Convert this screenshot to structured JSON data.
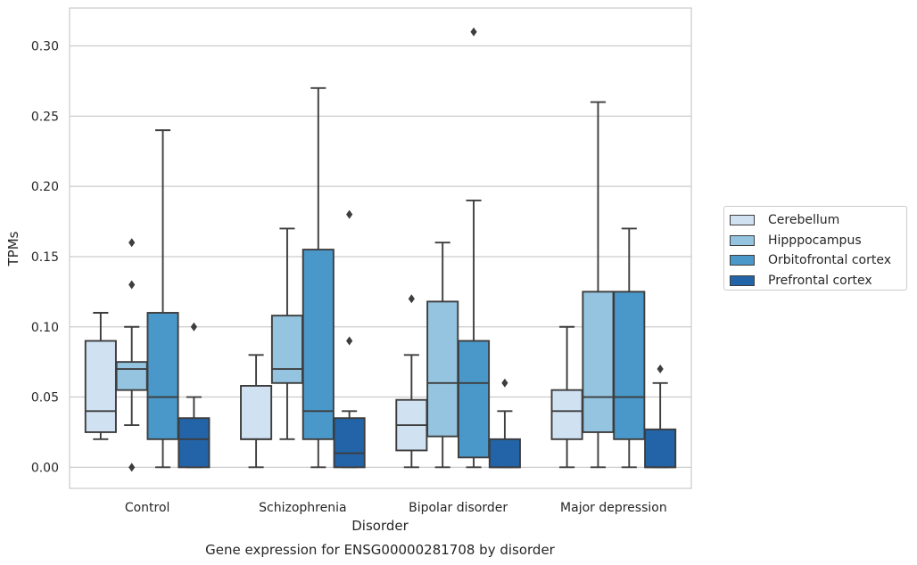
{
  "chart_data": {
    "type": "box",
    "title": "",
    "caption": "Gene expression for ENSG00000281708 by disorder",
    "xlabel": "Disorder",
    "ylabel": "TPMs",
    "ylim": [
      -0.015,
      0.327
    ],
    "yticks": [
      "0.00",
      "0.05",
      "0.10",
      "0.15",
      "0.20",
      "0.25",
      "0.30"
    ],
    "grid": "horizontal",
    "legend_position": "right",
    "categories": [
      "Control",
      "Schizophrenia",
      "Bipolar disorder",
      "Major depression"
    ],
    "series": [
      {
        "name": "Cerebellum",
        "color": "#d0e1f2",
        "boxes": [
          {
            "whislo": 0.02,
            "q1": 0.025,
            "med": 0.04,
            "q3": 0.09,
            "whishi": 0.11,
            "fliers": []
          },
          {
            "whislo": 0.0,
            "q1": 0.02,
            "med": 0.02,
            "q3": 0.058,
            "whishi": 0.08,
            "fliers": []
          },
          {
            "whislo": 0.0,
            "q1": 0.012,
            "med": 0.03,
            "q3": 0.048,
            "whishi": 0.08,
            "fliers": [
              0.12
            ]
          },
          {
            "whislo": 0.0,
            "q1": 0.02,
            "med": 0.04,
            "q3": 0.055,
            "whishi": 0.1,
            "fliers": []
          }
        ]
      },
      {
        "name": "Hipppocampus",
        "color": "#94c4df",
        "boxes": [
          {
            "whislo": 0.03,
            "q1": 0.055,
            "med": 0.07,
            "q3": 0.075,
            "whishi": 0.1,
            "fliers": [
              0.13,
              0.16,
              0.0
            ]
          },
          {
            "whislo": 0.02,
            "q1": 0.06,
            "med": 0.07,
            "q3": 0.108,
            "whishi": 0.17,
            "fliers": []
          },
          {
            "whislo": 0.0,
            "q1": 0.022,
            "med": 0.06,
            "q3": 0.118,
            "whishi": 0.16,
            "fliers": []
          },
          {
            "whislo": 0.0,
            "q1": 0.025,
            "med": 0.05,
            "q3": 0.125,
            "whishi": 0.26,
            "fliers": []
          }
        ]
      },
      {
        "name": "Orbitofrontal cortex",
        "color": "#4a98c9",
        "boxes": [
          {
            "whislo": 0.0,
            "q1": 0.02,
            "med": 0.05,
            "q3": 0.11,
            "whishi": 0.24,
            "fliers": []
          },
          {
            "whislo": 0.0,
            "q1": 0.02,
            "med": 0.04,
            "q3": 0.155,
            "whishi": 0.27,
            "fliers": []
          },
          {
            "whislo": 0.0,
            "q1": 0.007,
            "med": 0.06,
            "q3": 0.09,
            "whishi": 0.19,
            "fliers": [
              0.31
            ]
          },
          {
            "whislo": 0.0,
            "q1": 0.02,
            "med": 0.05,
            "q3": 0.125,
            "whishi": 0.17,
            "fliers": []
          }
        ]
      },
      {
        "name": "Prefrontal cortex",
        "color": "#2264a7",
        "boxes": [
          {
            "whislo": 0.0,
            "q1": 0.0,
            "med": 0.02,
            "q3": 0.035,
            "whishi": 0.05,
            "fliers": [
              0.1
            ]
          },
          {
            "whislo": 0.0,
            "q1": 0.0,
            "med": 0.01,
            "q3": 0.035,
            "whishi": 0.04,
            "fliers": [
              0.09,
              0.18
            ]
          },
          {
            "whislo": 0.0,
            "q1": 0.0,
            "med": 0.0,
            "q3": 0.02,
            "whishi": 0.04,
            "fliers": [
              0.06
            ]
          },
          {
            "whislo": 0.0,
            "q1": 0.0,
            "med": 0.0,
            "q3": 0.027,
            "whishi": 0.06,
            "fliers": [
              0.07
            ]
          }
        ]
      }
    ]
  }
}
